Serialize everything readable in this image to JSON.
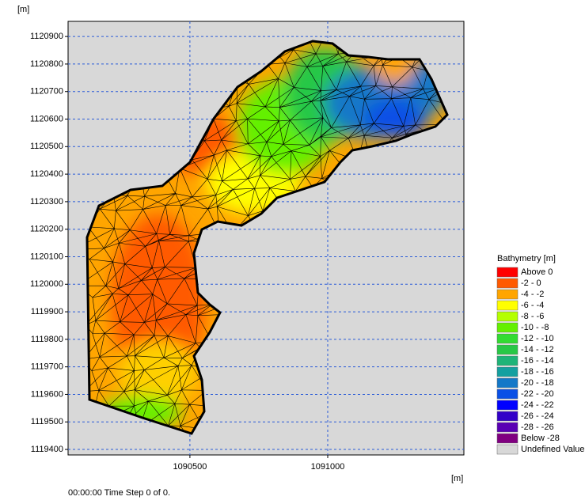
{
  "chart_data": {
    "type": "mesh-map",
    "y_unit": "[m]",
    "x_unit": "[m]",
    "xlim": [
      1090058,
      1091494
    ],
    "ylim": [
      1119380,
      1120955
    ],
    "xticks": [
      1090500,
      1091000
    ],
    "yticks": [
      1119400,
      1119500,
      1119600,
      1119700,
      1119800,
      1119900,
      1120000,
      1120100,
      1120200,
      1120300,
      1120400,
      1120500,
      1120600,
      1120700,
      1120800,
      1120900
    ],
    "grid": true,
    "legend": {
      "title": "Bathymetry [m]",
      "items": [
        {
          "label": "Above 0",
          "color": "#ff0000"
        },
        {
          "label": "-2 - 0",
          "color": "#ff5a00"
        },
        {
          "label": "-4 - -2",
          "color": "#ffa500"
        },
        {
          "label": "-6 - -4",
          "color": "#ffff00"
        },
        {
          "label": "-8 - -6",
          "color": "#b4ff00"
        },
        {
          "label": "-10 - -8",
          "color": "#64f000"
        },
        {
          "label": "-12 - -10",
          "color": "#32dc32"
        },
        {
          "label": "-14 - -12",
          "color": "#28c846"
        },
        {
          "label": "-16 - -14",
          "color": "#1eb478"
        },
        {
          "label": "-18 - -16",
          "color": "#14a0a0"
        },
        {
          "label": "-20 - -18",
          "color": "#1478c8"
        },
        {
          "label": "-22 - -20",
          "color": "#0a50e6"
        },
        {
          "label": "-24 - -22",
          "color": "#0000ff"
        },
        {
          "label": "-26 - -24",
          "color": "#3200c8"
        },
        {
          "label": "-28 - -26",
          "color": "#5a00b4"
        },
        {
          "label": "Below -28",
          "color": "#800080"
        },
        {
          "label": "Undefined Value",
          "color": "#d8d8d8"
        }
      ]
    },
    "footer": "00:00:00 Time Step 0 of 0."
  }
}
